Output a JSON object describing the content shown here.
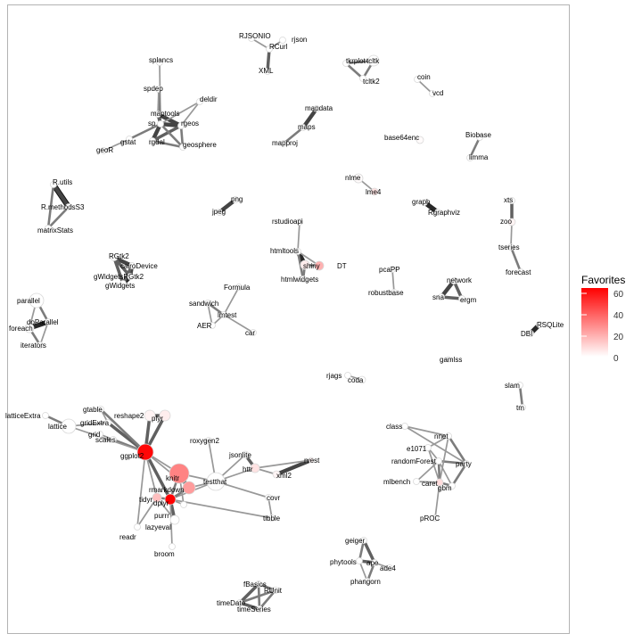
{
  "legend": {
    "title": "Favorites",
    "ticks": [
      "60",
      "40",
      "20",
      "0"
    ],
    "color_low": "#ffffff",
    "color_high": "#ff0000"
  },
  "nodes": [
    {
      "id": "RJSONIO",
      "label": "RJSONIO",
      "fav": 0
    },
    {
      "id": "rjson",
      "label": "rjson",
      "fav": 0
    },
    {
      "id": "RCurl",
      "label": "RCurl",
      "fav": 0
    },
    {
      "id": "XML",
      "label": "XML",
      "fav": 0
    },
    {
      "id": "tkrplot",
      "label": "tkrplot",
      "fav": 0
    },
    {
      "id": "tcltk",
      "label": "tcltk",
      "fav": 0
    },
    {
      "id": "tcltk2",
      "label": "tcltk2",
      "fav": 0
    },
    {
      "id": "coin",
      "label": "coin",
      "fav": 0
    },
    {
      "id": "vcd",
      "label": "vcd",
      "fav": 0
    },
    {
      "id": "splancs",
      "label": "splancs",
      "fav": 0
    },
    {
      "id": "spdep",
      "label": "spdep",
      "fav": 0
    },
    {
      "id": "deldir",
      "label": "deldir",
      "fav": 0
    },
    {
      "id": "maptools",
      "label": "maptools",
      "fav": 0
    },
    {
      "id": "sp",
      "label": "sp",
      "fav": 0
    },
    {
      "id": "rgeos",
      "label": "rgeos",
      "fav": 0
    },
    {
      "id": "gstat",
      "label": "gstat",
      "fav": 0
    },
    {
      "id": "rgdal",
      "label": "rgdal",
      "fav": 0
    },
    {
      "id": "geoR",
      "label": "geoR",
      "fav": 0
    },
    {
      "id": "geosphere",
      "label": "geosphere",
      "fav": 0
    },
    {
      "id": "mapdata",
      "label": "mapdata",
      "fav": 0
    },
    {
      "id": "maps",
      "label": "maps",
      "fav": 0
    },
    {
      "id": "mapproj",
      "label": "mapproj",
      "fav": 0
    },
    {
      "id": "base64enc",
      "label": "base64enc",
      "fav": 1
    },
    {
      "id": "Biobase",
      "label": "Biobase",
      "fav": 0
    },
    {
      "id": "limma",
      "label": "limma",
      "fav": 0
    },
    {
      "id": "nlme",
      "label": "nlme",
      "fav": 1
    },
    {
      "id": "lme4",
      "label": "lme4",
      "fav": 8
    },
    {
      "id": "R.utils",
      "label": "R.utils",
      "fav": 0
    },
    {
      "id": "R.methodsS3",
      "label": "R.methodsS3",
      "fav": 0
    },
    {
      "id": "matrixStats",
      "label": "matrixStats",
      "fav": 0
    },
    {
      "id": "png",
      "label": "png",
      "fav": 0
    },
    {
      "id": "jpeg",
      "label": "jpeg",
      "fav": 0
    },
    {
      "id": "graph",
      "label": "graph",
      "fav": 0
    },
    {
      "id": "Rgraphviz",
      "label": "Rgraphviz",
      "fav": 0
    },
    {
      "id": "xts",
      "label": "xts",
      "fav": 0
    },
    {
      "id": "zoo",
      "label": "zoo",
      "fav": 3
    },
    {
      "id": "rstudioapi",
      "label": "rstudioapi",
      "fav": 0
    },
    {
      "id": "htmltools",
      "label": "htmltools",
      "fav": 0
    },
    {
      "id": "shiny",
      "label": "shiny",
      "fav": 5
    },
    {
      "id": "DT",
      "label": "DT",
      "fav": 22
    },
    {
      "id": "htmlwidgets",
      "label": "htmlwidgets",
      "fav": 0
    },
    {
      "id": "tseries",
      "label": "tseries",
      "fav": 0
    },
    {
      "id": "forecast",
      "label": "forecast",
      "fav": 0
    },
    {
      "id": "RGtk2",
      "label": "RGtk2",
      "fav": 0
    },
    {
      "id": "cairoDevice",
      "label": "cairoDevice",
      "fav": 0
    },
    {
      "id": "gWidgetsRGtk2",
      "label": "gWidgetsRGtk2",
      "fav": 0
    },
    {
      "id": "gWidgets",
      "label": "gWidgets",
      "fav": 0
    },
    {
      "id": "pcaPP",
      "label": "pcaPP",
      "fav": 0
    },
    {
      "id": "robustbase",
      "label": "robustbase",
      "fav": 0
    },
    {
      "id": "network",
      "label": "network",
      "fav": 0
    },
    {
      "id": "sna",
      "label": "sna",
      "fav": 0
    },
    {
      "id": "ergm",
      "label": "ergm",
      "fav": 0
    },
    {
      "id": "Formula",
      "label": "Formula",
      "fav": 0
    },
    {
      "id": "sandwich",
      "label": "sandwich",
      "fav": 0
    },
    {
      "id": "lmtest",
      "label": "lmtest",
      "fav": 0
    },
    {
      "id": "AER",
      "label": "AER",
      "fav": 0
    },
    {
      "id": "car",
      "label": "car",
      "fav": 0
    },
    {
      "id": "parallel",
      "label": "parallel",
      "fav": 0
    },
    {
      "id": "doParallel",
      "label": "doParallel",
      "fav": 0
    },
    {
      "id": "foreach",
      "label": "foreach",
      "fav": 0
    },
    {
      "id": "iterators",
      "label": "iterators",
      "fav": 0
    },
    {
      "id": "RSQLite",
      "label": "RSQLite",
      "fav": 0
    },
    {
      "id": "DBI",
      "label": "DBI",
      "fav": 0
    },
    {
      "id": "gamlss",
      "label": "gamlss",
      "fav": 0
    },
    {
      "id": "rjags",
      "label": "rjags",
      "fav": 0
    },
    {
      "id": "coda",
      "label": "coda",
      "fav": 0
    },
    {
      "id": "slam",
      "label": "slam",
      "fav": 0
    },
    {
      "id": "tm",
      "label": "tm",
      "fav": 0
    },
    {
      "id": "latticeExtra",
      "label": "latticeExtra",
      "fav": 0
    },
    {
      "id": "lattice",
      "label": "lattice",
      "fav": 0
    },
    {
      "id": "gtable",
      "label": "gtable",
      "fav": 0
    },
    {
      "id": "reshape2",
      "label": "reshape2",
      "fav": 3
    },
    {
      "id": "plyr",
      "label": "plyr",
      "fav": 5
    },
    {
      "id": "gridExtra",
      "label": "gridExtra",
      "fav": 0
    },
    {
      "id": "grid",
      "label": "grid",
      "fav": 0
    },
    {
      "id": "scales",
      "label": "scales",
      "fav": 0
    },
    {
      "id": "ggplot2",
      "label": "ggplot2",
      "fav": 70
    },
    {
      "id": "roxygen2",
      "label": "roxygen2",
      "fav": 0
    },
    {
      "id": "jsonlite",
      "label": "jsonlite",
      "fav": 0
    },
    {
      "id": "rvest",
      "label": "rvest",
      "fav": 3
    },
    {
      "id": "httr",
      "label": "httr",
      "fav": 8
    },
    {
      "id": "xml2",
      "label": "xml2",
      "fav": 3
    },
    {
      "id": "knitr",
      "label": "knitr",
      "fav": 35
    },
    {
      "id": "testthat",
      "label": "testthat",
      "fav": 0
    },
    {
      "id": "rmarkdown",
      "label": "rmarkdown",
      "fav": 28
    },
    {
      "id": "tidyr",
      "label": "tidyr",
      "fav": 18
    },
    {
      "id": "dplyr",
      "label": "dplyr",
      "fav": 72
    },
    {
      "id": "purrr",
      "label": "purrr",
      "fav": 0
    },
    {
      "id": "readr",
      "label": "readr",
      "fav": 0
    },
    {
      "id": "lazyeval",
      "label": "lazyeval",
      "fav": 0
    },
    {
      "id": "broom",
      "label": "broom",
      "fav": 0
    },
    {
      "id": "covr",
      "label": "covr",
      "fav": 0
    },
    {
      "id": "tibble",
      "label": "tibble",
      "fav": 0
    },
    {
      "id": "class",
      "label": "class",
      "fav": 0
    },
    {
      "id": "nnet",
      "label": "nnet",
      "fav": 0
    },
    {
      "id": "e1071",
      "label": "e1071",
      "fav": 0
    },
    {
      "id": "randomForest",
      "label": "randomForest",
      "fav": 0
    },
    {
      "id": "party",
      "label": "party",
      "fav": 0
    },
    {
      "id": "mlbench",
      "label": "mlbench",
      "fav": 0
    },
    {
      "id": "caret",
      "label": "caret",
      "fav": 10
    },
    {
      "id": "gbm",
      "label": "gbm",
      "fav": 0
    },
    {
      "id": "pROC",
      "label": "pROC",
      "fav": 0
    },
    {
      "id": "geiger",
      "label": "geiger",
      "fav": 0
    },
    {
      "id": "phytools",
      "label": "phytools",
      "fav": 0
    },
    {
      "id": "ape",
      "label": "ape",
      "fav": 0
    },
    {
      "id": "ade4",
      "label": "ade4",
      "fav": 0
    },
    {
      "id": "phangorn",
      "label": "phangorn",
      "fav": 0
    },
    {
      "id": "fBasics",
      "label": "fBasics",
      "fav": 0
    },
    {
      "id": "RUnit",
      "label": "RUnit",
      "fav": 0
    },
    {
      "id": "timeDate",
      "label": "timeDate",
      "fav": 0
    },
    {
      "id": "timeSeries",
      "label": "timeSeries",
      "fav": 0
    }
  ]
}
